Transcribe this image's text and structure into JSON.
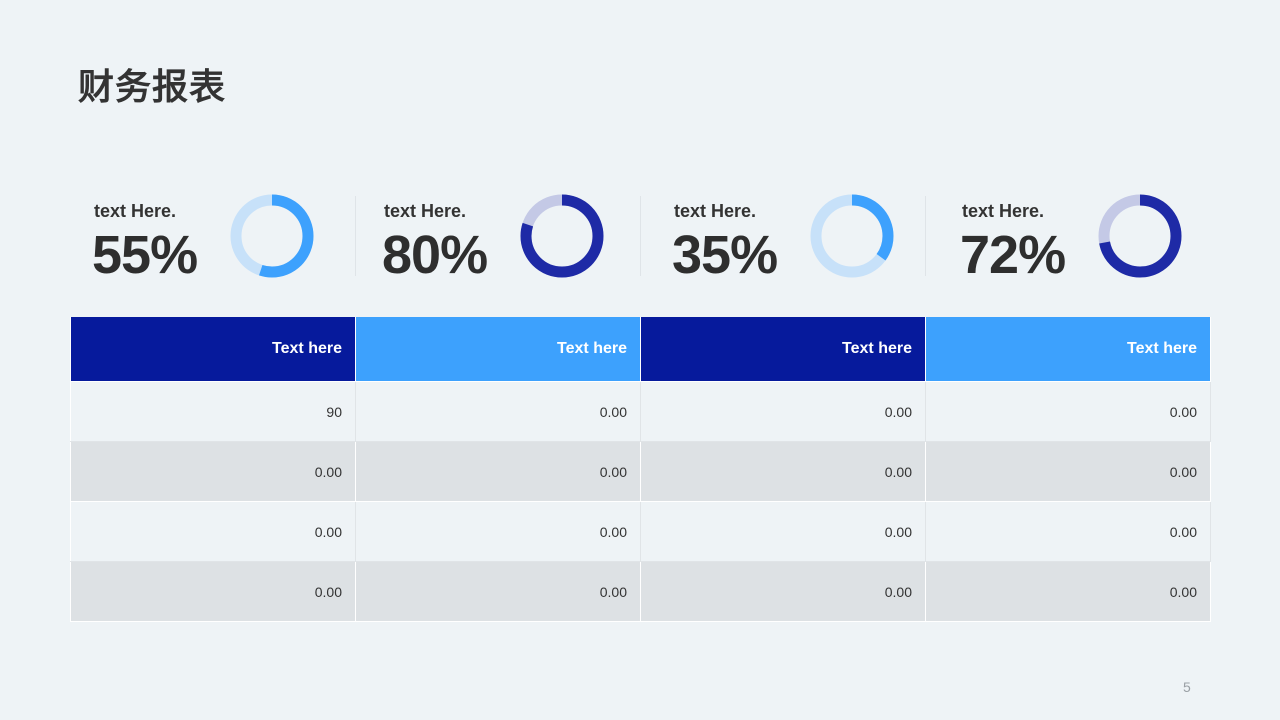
{
  "title": "财务报表",
  "colors": {
    "dark_blue": "#1e2aa6",
    "light_blue": "#3da1fd",
    "dark_track": "#c4c9e6",
    "light_track": "#c7e1f9",
    "header_dark": "#061a9c",
    "header_light": "#3da1fd"
  },
  "chart_data": {
    "type": "pie",
    "series": [
      {
        "name": "text Here.",
        "value_label": "55%",
        "value": 55,
        "color": "light_blue"
      },
      {
        "name": "text Here.",
        "value_label": "80%",
        "value": 80,
        "color": "dark_blue"
      },
      {
        "name": "text Here.",
        "value_label": "35%",
        "value": 35,
        "color": "light_blue"
      },
      {
        "name": "text Here.",
        "value_label": "72%",
        "value": 72,
        "color": "dark_blue"
      }
    ]
  },
  "table": {
    "headers": [
      "Text here",
      "Text here",
      "Text here",
      "Text here"
    ],
    "rows": [
      [
        "90",
        "0.00",
        "0.00",
        "0.00"
      ],
      [
        "0.00",
        "0.00",
        "0.00",
        "0.00"
      ],
      [
        "0.00",
        "0.00",
        "0.00",
        "0.00"
      ],
      [
        "0.00",
        "0.00",
        "0.00",
        "0.00"
      ]
    ]
  },
  "page_number": "5"
}
